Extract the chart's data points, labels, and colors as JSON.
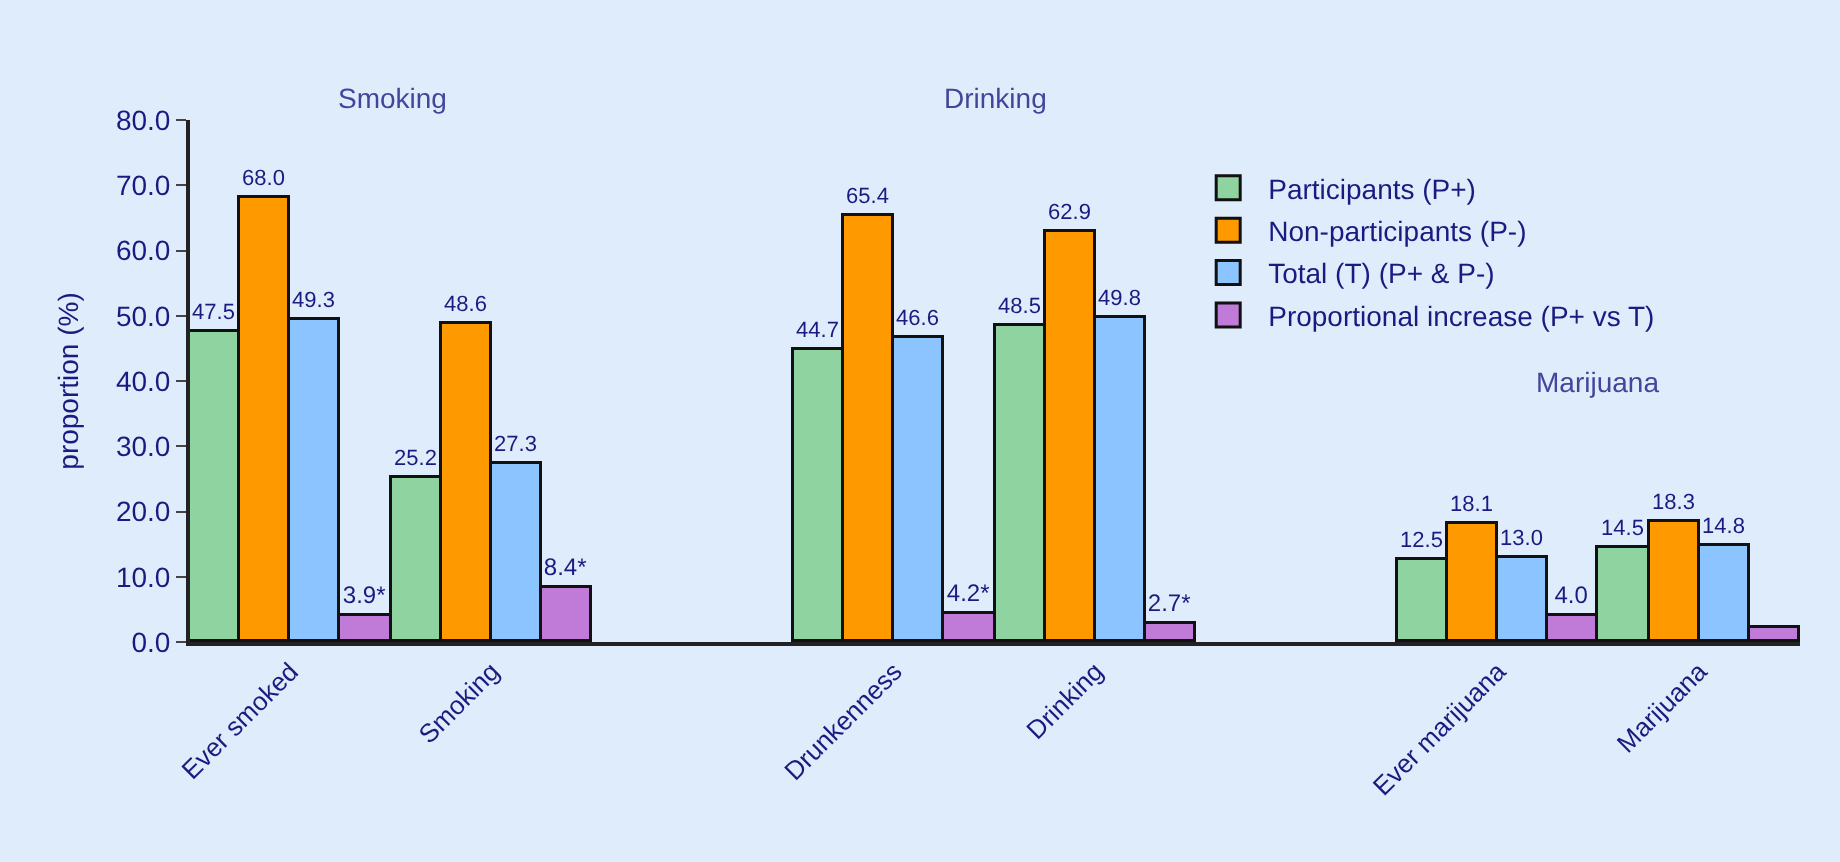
{
  "chart_data": {
    "type": "bar",
    "categories": [
      "Ever smoked",
      "Smoking",
      null,
      "Drunkenness",
      "Drinking",
      null,
      "Ever marijuana",
      "Marijuana"
    ],
    "series": [
      {
        "name": "Participants (P+)",
        "color": "#8fd3a0",
        "values": [
          47.5,
          25.2,
          null,
          44.7,
          48.5,
          null,
          12.5,
          14.5
        ],
        "value_labels": [
          "47.5",
          "25.2",
          null,
          "44.7",
          "48.5",
          null,
          "12.5",
          "14.5"
        ]
      },
      {
        "name": "Non-participants (P-)",
        "color": "#ff9900",
        "values": [
          68.0,
          48.6,
          null,
          65.4,
          62.9,
          null,
          18.1,
          18.3
        ],
        "value_labels": [
          "68.0",
          "48.6",
          null,
          "65.4",
          "62.9",
          null,
          "18.1",
          "18.3"
        ]
      },
      {
        "name": "Total (T) (P+ & P-)",
        "color": "#8cc4ff",
        "values": [
          49.3,
          27.3,
          null,
          46.6,
          49.8,
          null,
          13.0,
          14.8
        ],
        "value_labels": [
          "49.3",
          "27.3",
          null,
          "46.6",
          "49.8",
          null,
          "13.0",
          "14.8"
        ]
      },
      {
        "name": "Proportional increase (P+ vs T)",
        "color": "#c07ad8",
        "values": [
          3.9,
          8.4,
          null,
          4.2,
          2.7,
          null,
          4.0,
          2.3
        ],
        "value_labels": [
          "3.9*",
          "8.4*",
          null,
          "4.2*",
          "2.7*",
          null,
          "4.0",
          null
        ]
      }
    ],
    "ylabel": "proportion (%)",
    "ylim": [
      0,
      80
    ],
    "yticks": [
      {
        "value": 0,
        "label": "0.0"
      },
      {
        "value": 10,
        "label": "10.0"
      },
      {
        "value": 20,
        "label": "20.0"
      },
      {
        "value": 30,
        "label": "30.0"
      },
      {
        "value": 40,
        "label": "40.0"
      },
      {
        "value": 50,
        "label": "50.0"
      },
      {
        "value": 60,
        "label": "60.0"
      },
      {
        "value": 70,
        "label": "70.0"
      },
      {
        "value": 80,
        "label": "80.0"
      }
    ],
    "annotations": [
      "Smoking",
      "Drinking",
      "Marijuana"
    ],
    "legend": "top right",
    "grid": false
  }
}
